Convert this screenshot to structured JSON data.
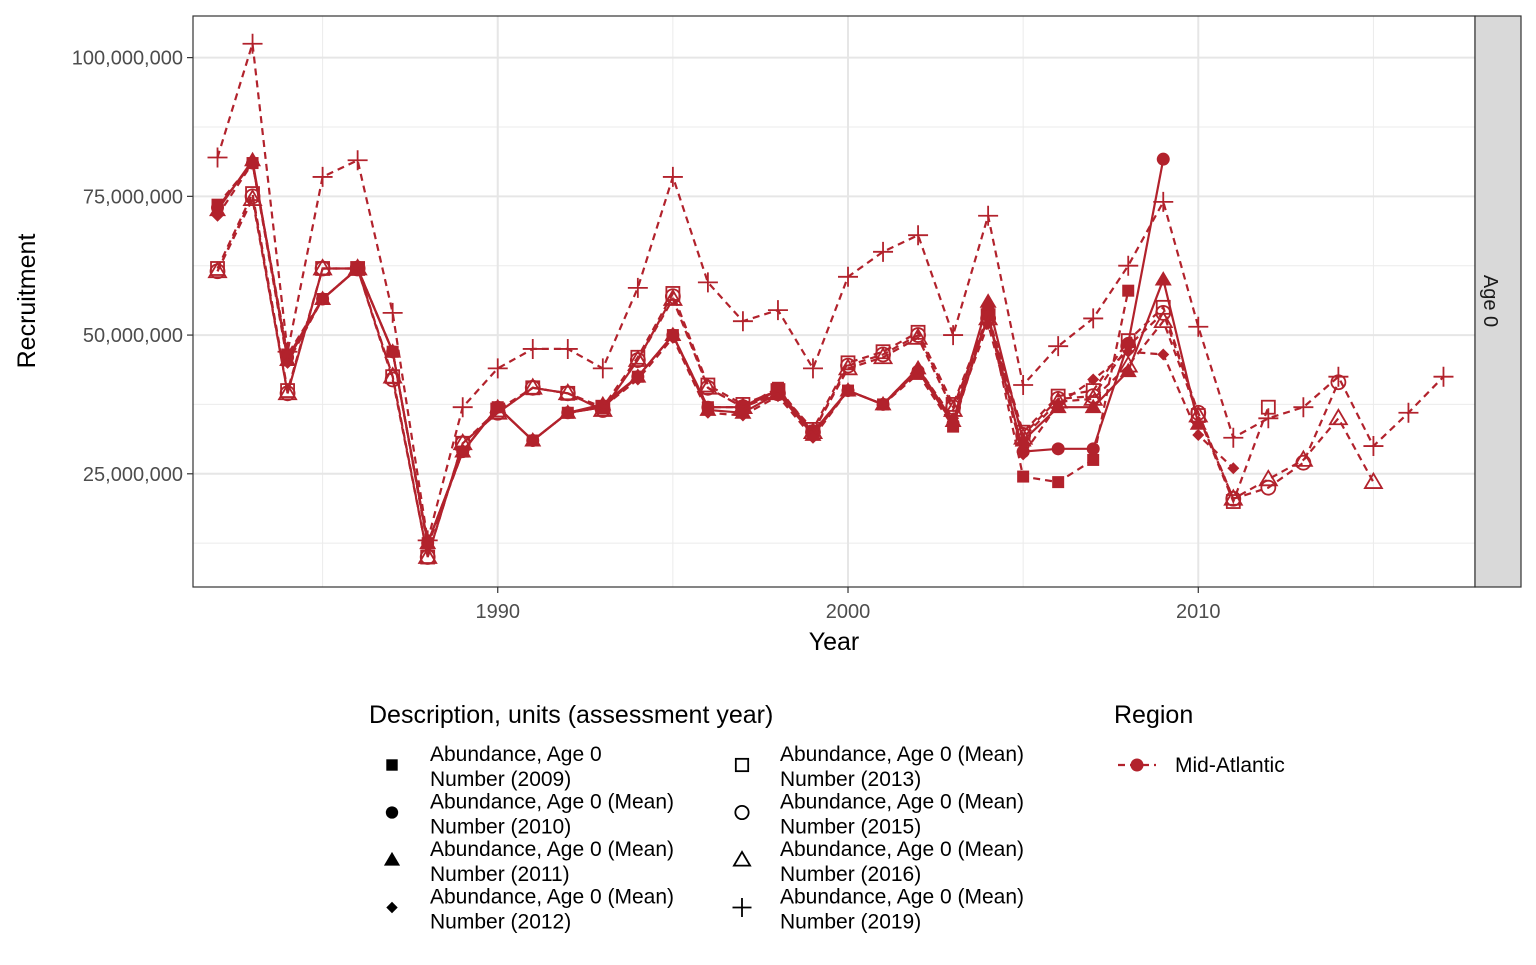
{
  "chart_data": {
    "type": "line",
    "xlabel": "Year",
    "ylabel": "Recruitment",
    "facet_label": "Age 0",
    "xlim": [
      1981.3,
      2017.9
    ],
    "ylim": [
      4600000,
      107500000
    ],
    "x_ticks": [
      1990,
      2000,
      2010
    ],
    "x_tick_labels": [
      "1990",
      "2000",
      "2010"
    ],
    "y_ticks": [
      25000000,
      50000000,
      75000000,
      100000000
    ],
    "y_tick_labels": [
      "25,000,000",
      "50,000,000",
      "75,000,000",
      "100,000,000"
    ],
    "grid": true,
    "series_color": "#B2222C",
    "legend_position": "bottom",
    "legend": {
      "shape_title": "Description, units (assessment year)",
      "shape_entries": [
        {
          "line1": "Abundance, Age 0",
          "line2": "Number (2009)",
          "shape": "filled-square"
        },
        {
          "line1": "Abundance, Age 0 (Mean)",
          "line2": "Number (2010)",
          "shape": "filled-circle"
        },
        {
          "line1": "Abundance, Age 0 (Mean)",
          "line2": "Number (2011)",
          "shape": "filled-triangle"
        },
        {
          "line1": "Abundance, Age 0 (Mean)",
          "line2": "Number (2012)",
          "shape": "filled-diamond"
        },
        {
          "line1": "Abundance, Age 0 (Mean)",
          "line2": "Number (2013)",
          "shape": "open-square"
        },
        {
          "line1": "Abundance, Age 0 (Mean)",
          "line2": "Number (2015)",
          "shape": "open-circle"
        },
        {
          "line1": "Abundance, Age 0 (Mean)",
          "line2": "Number (2016)",
          "shape": "open-triangle"
        },
        {
          "line1": "Abundance, Age 0 (Mean)",
          "line2": "Number (2019)",
          "shape": "plus"
        }
      ],
      "color_title": "Region",
      "color_entries": [
        {
          "label": "Mid-Atlantic",
          "color": "#B2222C"
        }
      ]
    },
    "series": [
      {
        "name": "Abundance, Age 0 Number (2009)",
        "shape": "filled-square",
        "x": [
          1982,
          1983,
          1984,
          1985,
          1986,
          1987,
          1988,
          1989,
          1990,
          1991,
          1992,
          1993,
          1994,
          1995,
          1996,
          1997,
          1998,
          1999,
          2000,
          2001,
          2002,
          2003,
          2004,
          2005,
          2006,
          2007,
          2008
        ],
        "y": [
          73500000,
          81000000,
          46500000,
          56500000,
          62000000,
          47000000,
          12500000,
          29000000,
          37000000,
          31000000,
          36000000,
          37000000,
          42500000,
          50000000,
          37000000,
          37000000,
          40500000,
          32500000,
          40000000,
          37500000,
          43000000,
          33500000,
          54000000,
          24500000,
          23500000,
          27500000,
          58000000
        ]
      },
      {
        "name": "Abundance, Age 0 (Mean) Number (2010)",
        "shape": "filled-circle",
        "x": [
          1982,
          1983,
          1984,
          1985,
          1986,
          1987,
          1988,
          1989,
          1990,
          1991,
          1992,
          1993,
          1994,
          1995,
          1996,
          1997,
          1998,
          1999,
          2000,
          2001,
          2002,
          2003,
          2004,
          2005,
          2006,
          2007,
          2008,
          2009
        ],
        "y": [
          73000000,
          81000000,
          46000000,
          56500000,
          62000000,
          47000000,
          12500000,
          29000000,
          37000000,
          31000000,
          36000000,
          37000000,
          42500000,
          50000000,
          37000000,
          37000000,
          40000000,
          32500000,
          40000000,
          37500000,
          43500000,
          34000000,
          53500000,
          29000000,
          29500000,
          29500000,
          48500000,
          81700000
        ]
      },
      {
        "name": "Abundance, Age 0 (Mean) Number (2011)",
        "shape": "filled-triangle",
        "x": [
          1982,
          1983,
          1984,
          1985,
          1986,
          1987,
          1988,
          1989,
          1990,
          1991,
          1992,
          1993,
          1994,
          1995,
          1996,
          1997,
          1998,
          1999,
          2000,
          2001,
          2002,
          2003,
          2004,
          2005,
          2006,
          2007,
          2008,
          2009,
          2010
        ],
        "y": [
          72500000,
          81500000,
          45500000,
          56500000,
          62000000,
          47000000,
          12500000,
          29000000,
          37000000,
          31000000,
          36000000,
          37500000,
          42500000,
          50000000,
          36500000,
          36000000,
          39500000,
          32000000,
          40000000,
          37500000,
          44000000,
          34500000,
          56000000,
          31000000,
          37000000,
          37000000,
          43500000,
          60000000,
          34000000
        ]
      },
      {
        "name": "Abundance, Age 0 (Mean) Number (2012)",
        "shape": "filled-diamond",
        "x": [
          1982,
          1983,
          1984,
          1985,
          1986,
          1987,
          1988,
          1989,
          1990,
          1991,
          1992,
          1993,
          1994,
          1995,
          1996,
          1997,
          1998,
          1999,
          2000,
          2001,
          2002,
          2003,
          2004,
          2005,
          2006,
          2007,
          2008,
          2009,
          2010,
          2011
        ],
        "y": [
          71500000,
          81000000,
          45000000,
          56500000,
          62000000,
          47000000,
          12000000,
          29000000,
          37000000,
          31000000,
          36000000,
          37000000,
          42000000,
          49500000,
          36000000,
          35500000,
          39000000,
          31500000,
          40000000,
          37500000,
          44000000,
          35000000,
          52000000,
          28500000,
          37500000,
          42000000,
          47000000,
          46500000,
          32000000,
          26000000
        ]
      },
      {
        "name": "Abundance, Age 0 (Mean) Number (2013)",
        "shape": "open-square",
        "x": [
          1982,
          1983,
          1984,
          1985,
          1986,
          1987,
          1988,
          1989,
          1990,
          1991,
          1992,
          1993,
          1994,
          1995,
          1996,
          1997,
          1998,
          1999,
          2000,
          2001,
          2002,
          2003,
          2004,
          2005,
          2006,
          2007,
          2008,
          2009,
          2010,
          2011,
          2012
        ],
        "y": [
          62000000,
          75500000,
          40000000,
          62000000,
          62000000,
          42500000,
          10000000,
          30500000,
          36500000,
          40500000,
          39500000,
          37000000,
          46000000,
          57500000,
          41000000,
          37500000,
          40000000,
          33000000,
          45000000,
          47000000,
          50500000,
          37500000,
          53500000,
          32500000,
          39000000,
          40000000,
          49000000,
          55000000,
          35500000,
          20000000,
          37000000
        ]
      },
      {
        "name": "Abundance, Age 0 (Mean) Number (2015)",
        "shape": "open-circle",
        "x": [
          1982,
          1983,
          1984,
          1985,
          1986,
          1987,
          1988,
          1989,
          1990,
          1991,
          1992,
          1993,
          1994,
          1995,
          1996,
          1997,
          1998,
          1999,
          2000,
          2001,
          2002,
          2003,
          2004,
          2005,
          2006,
          2007,
          2008,
          2009,
          2010,
          2011,
          2012,
          2013,
          2014
        ],
        "y": [
          61500000,
          75000000,
          39500000,
          62000000,
          62000000,
          42000000,
          10000000,
          30500000,
          36000000,
          40500000,
          39500000,
          36500000,
          45500000,
          57000000,
          40500000,
          37000000,
          39500000,
          32500000,
          44500000,
          46500000,
          50000000,
          37000000,
          53000000,
          32000000,
          38500000,
          39000000,
          48000000,
          54000000,
          36000000,
          20500000,
          22500000,
          27000000,
          41500000
        ]
      },
      {
        "name": "Abundance, Age 0 (Mean) Number (2016)",
        "shape": "open-triangle",
        "x": [
          1982,
          1983,
          1984,
          1985,
          1986,
          1987,
          1988,
          1989,
          1990,
          1991,
          1992,
          1993,
          1994,
          1995,
          1996,
          1997,
          1998,
          1999,
          2000,
          2001,
          2002,
          2003,
          2004,
          2005,
          2006,
          2007,
          2008,
          2009,
          2010,
          2011,
          2012,
          2013,
          2014,
          2015
        ],
        "y": [
          61500000,
          74500000,
          39500000,
          62000000,
          62000000,
          42500000,
          10000000,
          30500000,
          36000000,
          40500000,
          39500000,
          36500000,
          45500000,
          56500000,
          40500000,
          37000000,
          39500000,
          32500000,
          44000000,
          46000000,
          49500000,
          36500000,
          53000000,
          31500000,
          38000000,
          38500000,
          44500000,
          52500000,
          35500000,
          20500000,
          24000000,
          27500000,
          35000000,
          23500000
        ]
      },
      {
        "name": "Abundance, Age 0 (Mean) Number (2019)",
        "shape": "plus",
        "x": [
          1982,
          1983,
          1984,
          1985,
          1986,
          1987,
          1988,
          1989,
          1990,
          1991,
          1992,
          1993,
          1994,
          1995,
          1996,
          1997,
          1998,
          1999,
          2000,
          2001,
          2002,
          2003,
          2004,
          2005,
          2006,
          2007,
          2008,
          2009,
          2010,
          2011,
          2012,
          2013,
          2014,
          2015,
          2016,
          2017
        ],
        "y": [
          82000000,
          102500000,
          47000000,
          78500000,
          81500000,
          54000000,
          13000000,
          37000000,
          44000000,
          47500000,
          47500000,
          44000000,
          58500000,
          78500000,
          59500000,
          52500000,
          54500000,
          44000000,
          60500000,
          65000000,
          68000000,
          50000000,
          71500000,
          41000000,
          48000000,
          53000000,
          62500000,
          74000000,
          51500000,
          31500000,
          35000000,
          37000000,
          42500000,
          30000000,
          36000000,
          42500000
        ]
      }
    ]
  }
}
